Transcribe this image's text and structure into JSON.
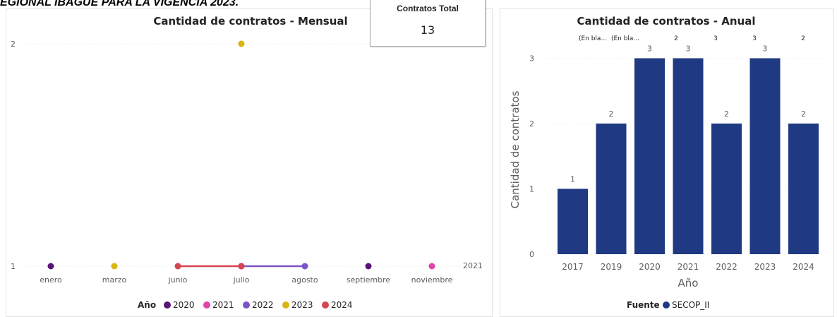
{
  "page": {
    "heading": "EGIONAL IBAGUE PARA LA VIGENCIA 2023."
  },
  "card": {
    "label": "Contratos Total",
    "value": "13"
  },
  "colors": {
    "bar": "#1f3a82",
    "y2020": "#5a1378",
    "y2021": "#e044a8",
    "y2022": "#7b54c8",
    "y2023": "#d9b614",
    "y2024": "#d64550"
  },
  "chart_data": [
    {
      "type": "line",
      "title": "Cantidad de contratos - Mensual",
      "categories": [
        "enero",
        "marzo",
        "junio",
        "julio",
        "agosto",
        "septiembre",
        "noviembre"
      ],
      "ylabels": [
        "1",
        "2"
      ],
      "ylim": [
        1,
        2
      ],
      "end_label": "2021",
      "legend": {
        "title": "Año",
        "position": "bottom",
        "entries": [
          "2020",
          "2021",
          "2022",
          "2023",
          "2024"
        ]
      },
      "series": [
        {
          "name": "2020",
          "color": "#5a1378",
          "points": [
            {
              "x": "enero",
              "y": 1
            },
            {
              "x": "septiembre",
              "y": 1
            }
          ]
        },
        {
          "name": "2021",
          "color": "#e044a8",
          "points": [
            {
              "x": "julio",
              "y": 1
            },
            {
              "x": "noviembre",
              "y": 1
            }
          ]
        },
        {
          "name": "2022",
          "color": "#7b54c8",
          "points": [
            {
              "x": "julio",
              "y": 1
            },
            {
              "x": "agosto",
              "y": 1
            }
          ]
        },
        {
          "name": "2023",
          "color": "#d9b614",
          "points": [
            {
              "x": "marzo",
              "y": 1
            },
            {
              "x": "julio",
              "y": 2
            }
          ]
        },
        {
          "name": "2024",
          "color": "#d64550",
          "points": [
            {
              "x": "junio",
              "y": 1
            },
            {
              "x": "julio",
              "y": 1
            }
          ]
        }
      ]
    },
    {
      "type": "bar",
      "title": "Cantidad de contratos - Anual",
      "categories": [
        "2017",
        "2019",
        "2020",
        "2021",
        "2022",
        "2023",
        "2024"
      ],
      "values": [
        1,
        2,
        3,
        3,
        2,
        3,
        2
      ],
      "xlabel": "Año",
      "ylabel": "Cantidad de contratos",
      "ylim": [
        0,
        3
      ],
      "yticks": [
        "0",
        "1",
        "2",
        "3"
      ],
      "top_labels": [
        "(En bla...",
        "(En bla...",
        "2",
        "3",
        "3",
        "2"
      ],
      "legend": {
        "title": "Fuente",
        "position": "bottom",
        "entries": [
          "SECOP_II"
        ]
      },
      "series": [
        {
          "name": "SECOP_II",
          "values": [
            1,
            2,
            3,
            3,
            2,
            3,
            2
          ]
        }
      ]
    }
  ]
}
